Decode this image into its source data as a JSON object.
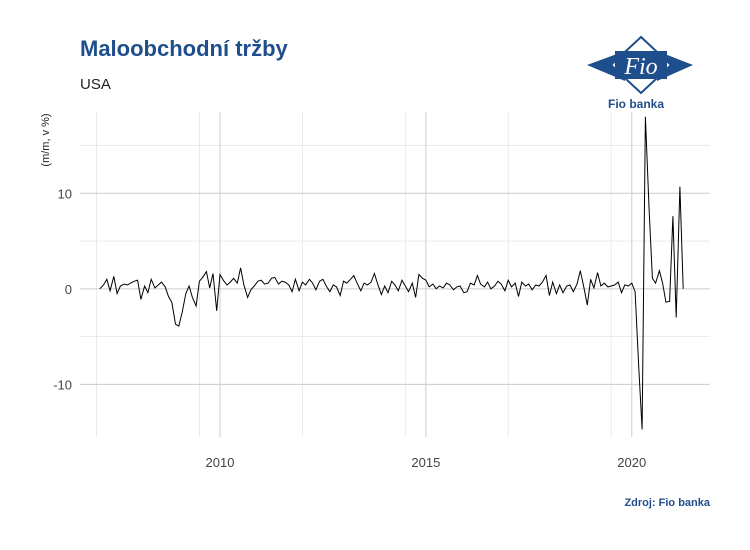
{
  "header": {
    "title": "Maloobchodní tržby",
    "subtitle": "USA"
  },
  "logo": {
    "letters": "Fio",
    "brand": "Fio banka",
    "brand_color": "#1f4e8c"
  },
  "footer": {
    "source": "Zdroj: Fio banka"
  },
  "chart_data": {
    "type": "line",
    "title": "Maloobchodní tržby",
    "subtitle": "USA",
    "xlabel": "",
    "ylabel": "(m/m, v %)",
    "xlim": [
      2006.6,
      2021.9
    ],
    "ylim": [
      -15.5,
      18.5
    ],
    "x_ticks": [
      2010,
      2015,
      2020
    ],
    "x_tick_labels": [
      "2010",
      "2015",
      "2020"
    ],
    "y_ticks": [
      -10,
      0,
      10
    ],
    "y_tick_labels": [
      "-10",
      "0",
      "10"
    ],
    "grid": true,
    "legend": "none",
    "line_color": "#000000",
    "series": [
      {
        "values": [
          [
            2007.08,
            0.0
          ],
          [
            2007.17,
            0.4
          ],
          [
            2007.25,
            1.0
          ],
          [
            2007.33,
            -0.2
          ],
          [
            2007.42,
            1.3
          ],
          [
            2007.5,
            -0.5
          ],
          [
            2007.58,
            0.3
          ],
          [
            2007.67,
            0.5
          ],
          [
            2007.75,
            0.4
          ],
          [
            2007.83,
            0.6
          ],
          [
            2007.92,
            0.8
          ],
          [
            2008.0,
            0.9
          ],
          [
            2008.08,
            -1.1
          ],
          [
            2008.17,
            0.3
          ],
          [
            2008.25,
            -0.4
          ],
          [
            2008.33,
            1.0
          ],
          [
            2008.42,
            0.1
          ],
          [
            2008.5,
            0.4
          ],
          [
            2008.58,
            0.7
          ],
          [
            2008.67,
            0.2
          ],
          [
            2008.75,
            -0.8
          ],
          [
            2008.83,
            -1.4
          ],
          [
            2008.92,
            -3.7
          ],
          [
            2009.0,
            -3.9
          ],
          [
            2009.08,
            -2.5
          ],
          [
            2009.17,
            -0.5
          ],
          [
            2009.25,
            0.3
          ],
          [
            2009.33,
            -0.9
          ],
          [
            2009.42,
            -1.8
          ],
          [
            2009.5,
            0.8
          ],
          [
            2009.58,
            1.2
          ],
          [
            2009.67,
            1.8
          ],
          [
            2009.75,
            0.1
          ],
          [
            2009.83,
            1.6
          ],
          [
            2009.92,
            -2.3
          ],
          [
            2010.0,
            1.5
          ],
          [
            2010.08,
            0.9
          ],
          [
            2010.17,
            0.4
          ],
          [
            2010.25,
            0.7
          ],
          [
            2010.33,
            1.1
          ],
          [
            2010.42,
            0.6
          ],
          [
            2010.5,
            2.2
          ],
          [
            2010.58,
            0.4
          ],
          [
            2010.67,
            -0.9
          ],
          [
            2010.75,
            -0.1
          ],
          [
            2010.83,
            0.3
          ],
          [
            2010.92,
            0.8
          ],
          [
            2011.0,
            0.9
          ],
          [
            2011.08,
            0.5
          ],
          [
            2011.17,
            0.6
          ],
          [
            2011.25,
            1.1
          ],
          [
            2011.33,
            1.2
          ],
          [
            2011.42,
            0.5
          ],
          [
            2011.5,
            0.8
          ],
          [
            2011.58,
            0.7
          ],
          [
            2011.67,
            0.4
          ],
          [
            2011.75,
            -0.3
          ],
          [
            2011.83,
            1.0
          ],
          [
            2011.92,
            -0.2
          ],
          [
            2012.0,
            0.7
          ],
          [
            2012.08,
            0.4
          ],
          [
            2012.17,
            1.0
          ],
          [
            2012.25,
            0.6
          ],
          [
            2012.33,
            -0.1
          ],
          [
            2012.42,
            0.8
          ],
          [
            2012.5,
            1.0
          ],
          [
            2012.58,
            0.3
          ],
          [
            2012.67,
            -0.3
          ],
          [
            2012.75,
            0.4
          ],
          [
            2012.83,
            0.2
          ],
          [
            2012.92,
            -0.7
          ],
          [
            2013.0,
            0.8
          ],
          [
            2013.08,
            0.6
          ],
          [
            2013.17,
            1.0
          ],
          [
            2013.25,
            1.4
          ],
          [
            2013.33,
            0.6
          ],
          [
            2013.42,
            -0.2
          ],
          [
            2013.5,
            0.6
          ],
          [
            2013.58,
            0.4
          ],
          [
            2013.67,
            0.7
          ],
          [
            2013.75,
            1.6
          ],
          [
            2013.83,
            0.5
          ],
          [
            2013.92,
            -0.6
          ],
          [
            2014.0,
            0.3
          ],
          [
            2014.08,
            -0.4
          ],
          [
            2014.17,
            0.8
          ],
          [
            2014.25,
            0.4
          ],
          [
            2014.33,
            -0.2
          ],
          [
            2014.42,
            0.9
          ],
          [
            2014.5,
            0.3
          ],
          [
            2014.58,
            -0.3
          ],
          [
            2014.67,
            0.6
          ],
          [
            2014.75,
            -0.9
          ],
          [
            2014.83,
            1.5
          ],
          [
            2014.92,
            1.1
          ],
          [
            2015.0,
            0.9
          ],
          [
            2015.08,
            0.2
          ],
          [
            2015.17,
            0.5
          ],
          [
            2015.25,
            0.0
          ],
          [
            2015.33,
            0.3
          ],
          [
            2015.42,
            0.1
          ],
          [
            2015.5,
            0.6
          ],
          [
            2015.58,
            0.4
          ],
          [
            2015.67,
            -0.1
          ],
          [
            2015.75,
            0.2
          ],
          [
            2015.83,
            0.3
          ],
          [
            2015.92,
            -0.4
          ],
          [
            2016.0,
            -0.3
          ],
          [
            2016.08,
            0.6
          ],
          [
            2016.17,
            0.4
          ],
          [
            2016.25,
            1.4
          ],
          [
            2016.33,
            0.5
          ],
          [
            2016.42,
            0.2
          ],
          [
            2016.5,
            0.7
          ],
          [
            2016.58,
            0.0
          ],
          [
            2016.67,
            0.3
          ],
          [
            2016.75,
            0.8
          ],
          [
            2016.83,
            0.5
          ],
          [
            2016.92,
            -0.2
          ],
          [
            2017.0,
            0.9
          ],
          [
            2017.08,
            0.2
          ],
          [
            2017.17,
            0.6
          ],
          [
            2017.25,
            -0.8
          ],
          [
            2017.33,
            0.7
          ],
          [
            2017.42,
            0.3
          ],
          [
            2017.5,
            0.5
          ],
          [
            2017.58,
            -0.1
          ],
          [
            2017.67,
            0.4
          ],
          [
            2017.75,
            0.3
          ],
          [
            2017.83,
            0.7
          ],
          [
            2017.92,
            1.4
          ],
          [
            2018.0,
            -0.7
          ],
          [
            2018.08,
            0.7
          ],
          [
            2018.17,
            -0.5
          ],
          [
            2018.25,
            0.4
          ],
          [
            2018.33,
            -0.4
          ],
          [
            2018.42,
            0.3
          ],
          [
            2018.5,
            0.4
          ],
          [
            2018.58,
            -0.3
          ],
          [
            2018.67,
            0.5
          ],
          [
            2018.75,
            1.9
          ],
          [
            2018.83,
            0.3
          ],
          [
            2018.92,
            -1.7
          ],
          [
            2019.0,
            1.0
          ],
          [
            2019.08,
            0.1
          ],
          [
            2019.17,
            1.7
          ],
          [
            2019.25,
            0.3
          ],
          [
            2019.33,
            0.6
          ],
          [
            2019.42,
            0.2
          ],
          [
            2019.5,
            0.3
          ],
          [
            2019.58,
            0.4
          ],
          [
            2019.67,
            0.7
          ],
          [
            2019.75,
            -0.4
          ],
          [
            2019.83,
            0.4
          ],
          [
            2019.92,
            0.3
          ],
          [
            2020.0,
            0.6
          ],
          [
            2020.08,
            -0.3
          ],
          [
            2020.17,
            -8.3
          ],
          [
            2020.25,
            -14.7
          ],
          [
            2020.33,
            18.0
          ],
          [
            2020.42,
            8.3
          ],
          [
            2020.5,
            1.1
          ],
          [
            2020.58,
            0.6
          ],
          [
            2020.67,
            1.9
          ],
          [
            2020.75,
            0.6
          ],
          [
            2020.83,
            -1.4
          ],
          [
            2020.92,
            -1.3
          ],
          [
            2021.0,
            7.6
          ],
          [
            2021.08,
            -3.0
          ],
          [
            2021.17,
            10.7
          ],
          [
            2021.25,
            0.0
          ]
        ]
      }
    ]
  }
}
